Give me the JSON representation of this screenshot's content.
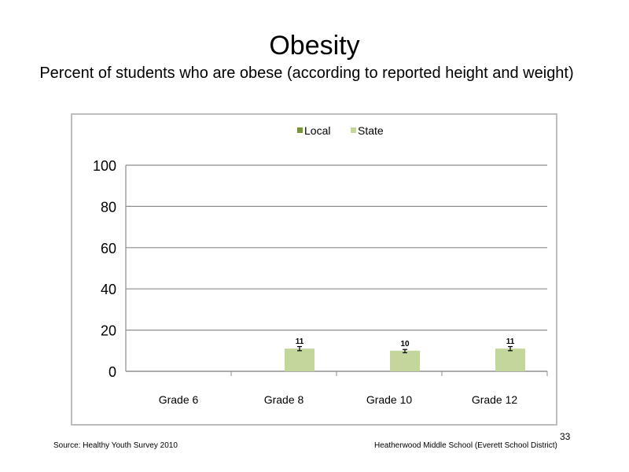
{
  "slide": {
    "title": "Obesity",
    "subtitle": "Percent of students who are obese (according to reported height and weight)",
    "source": "Source: Healthy Youth Survey 2010",
    "school": "Heatherwood Middle  School (Everett School District)",
    "page_number": "33"
  },
  "chart_data": {
    "type": "bar",
    "title": "",
    "xlabel": "",
    "ylabel": "",
    "ylim": [
      0,
      100
    ],
    "yticks": [
      0,
      20,
      40,
      60,
      80,
      100
    ],
    "grid": true,
    "legend_position": "top",
    "categories": [
      "Grade 6",
      "Grade 8",
      "Grade 10",
      "Grade 12"
    ],
    "series": [
      {
        "name": "Local",
        "color": "#77933c",
        "values": [
          null,
          null,
          null,
          null
        ]
      },
      {
        "name": "State",
        "color": "#c3d69b",
        "values": [
          null,
          11,
          10,
          11
        ],
        "error_low": [
          null,
          10,
          9,
          10
        ],
        "error_high": [
          null,
          12,
          10.6,
          12
        ]
      }
    ]
  }
}
